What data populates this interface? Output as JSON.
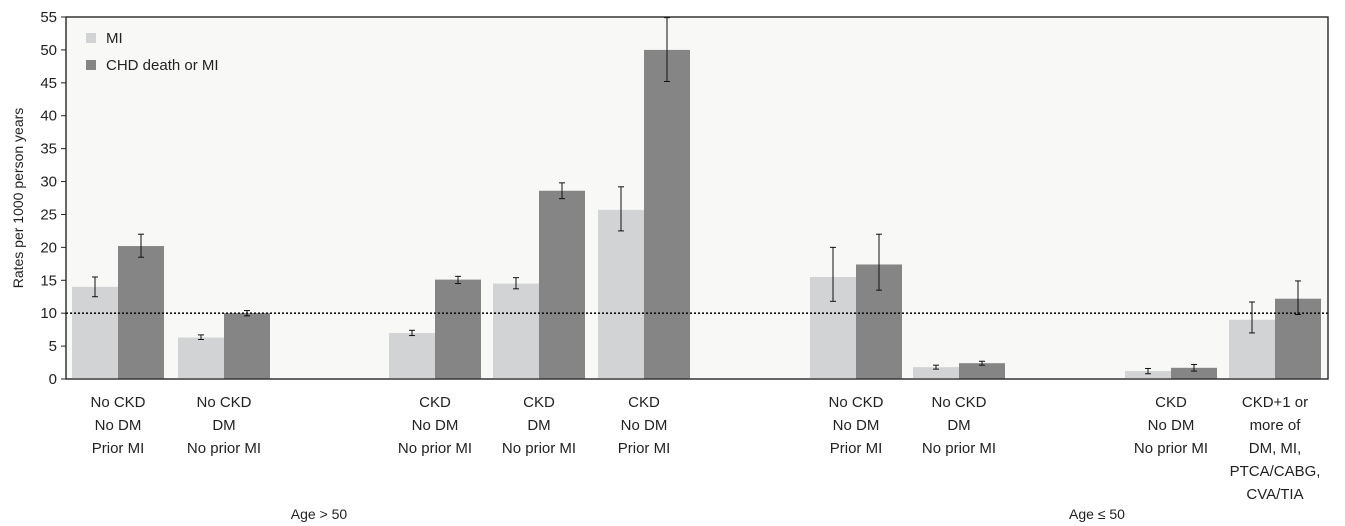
{
  "chart_data": {
    "type": "bar",
    "ylabel": "Rates per 1000 person years",
    "ylim": [
      0,
      55
    ],
    "yticks": [
      0,
      5,
      10,
      15,
      20,
      25,
      30,
      35,
      40,
      45,
      50,
      55
    ],
    "reference_line": 10,
    "legend_position": "top-left",
    "grid": false,
    "colors": {
      "MI": "#d2d3d5",
      "CHD death or MI": "#858585"
    },
    "categories": [
      {
        "lines": [
          "No CKD",
          "No DM",
          "Prior MI"
        ]
      },
      {
        "lines": [
          "No CKD",
          "DM",
          "No prior MI"
        ]
      },
      {
        "lines": [
          "CKD",
          "No DM",
          "No prior MI"
        ]
      },
      {
        "lines": [
          "CKD",
          "DM",
          "No prior MI"
        ]
      },
      {
        "lines": [
          "CKD",
          "No DM",
          "Prior MI"
        ]
      },
      {
        "lines": [
          "No CKD",
          "No DM",
          "Prior MI"
        ]
      },
      {
        "lines": [
          "No CKD",
          "DM",
          "No prior MI"
        ]
      },
      {
        "lines": [
          "CKD",
          "No DM",
          "No prior MI"
        ]
      },
      {
        "lines": [
          "CKD+1 or",
          "more of",
          "DM, MI,",
          "PTCA/CABG,",
          "CVA/TIA"
        ]
      }
    ],
    "series": [
      {
        "name": "MI",
        "values": [
          14.0,
          6.3,
          7.0,
          14.5,
          25.7,
          15.5,
          1.8,
          1.2,
          9.0
        ],
        "err_low": [
          12.5,
          6.0,
          6.6,
          13.7,
          22.5,
          11.8,
          1.5,
          0.8,
          7.0
        ],
        "err_high": [
          15.5,
          6.7,
          7.4,
          15.4,
          29.2,
          20.0,
          2.1,
          1.6,
          11.7
        ]
      },
      {
        "name": "CHD death or MI",
        "values": [
          20.2,
          10.0,
          15.1,
          28.6,
          50.0,
          17.4,
          2.4,
          1.7,
          12.2
        ],
        "err_low": [
          18.5,
          9.6,
          14.5,
          27.4,
          45.2,
          13.5,
          2.1,
          1.2,
          9.8
        ],
        "err_high": [
          22.0,
          10.4,
          15.6,
          29.8,
          54.9,
          22.0,
          2.7,
          2.2,
          14.9
        ]
      }
    ],
    "group_labels": [
      {
        "text": "Age > 50"
      },
      {
        "text": "Age ≤ 50"
      }
    ]
  }
}
